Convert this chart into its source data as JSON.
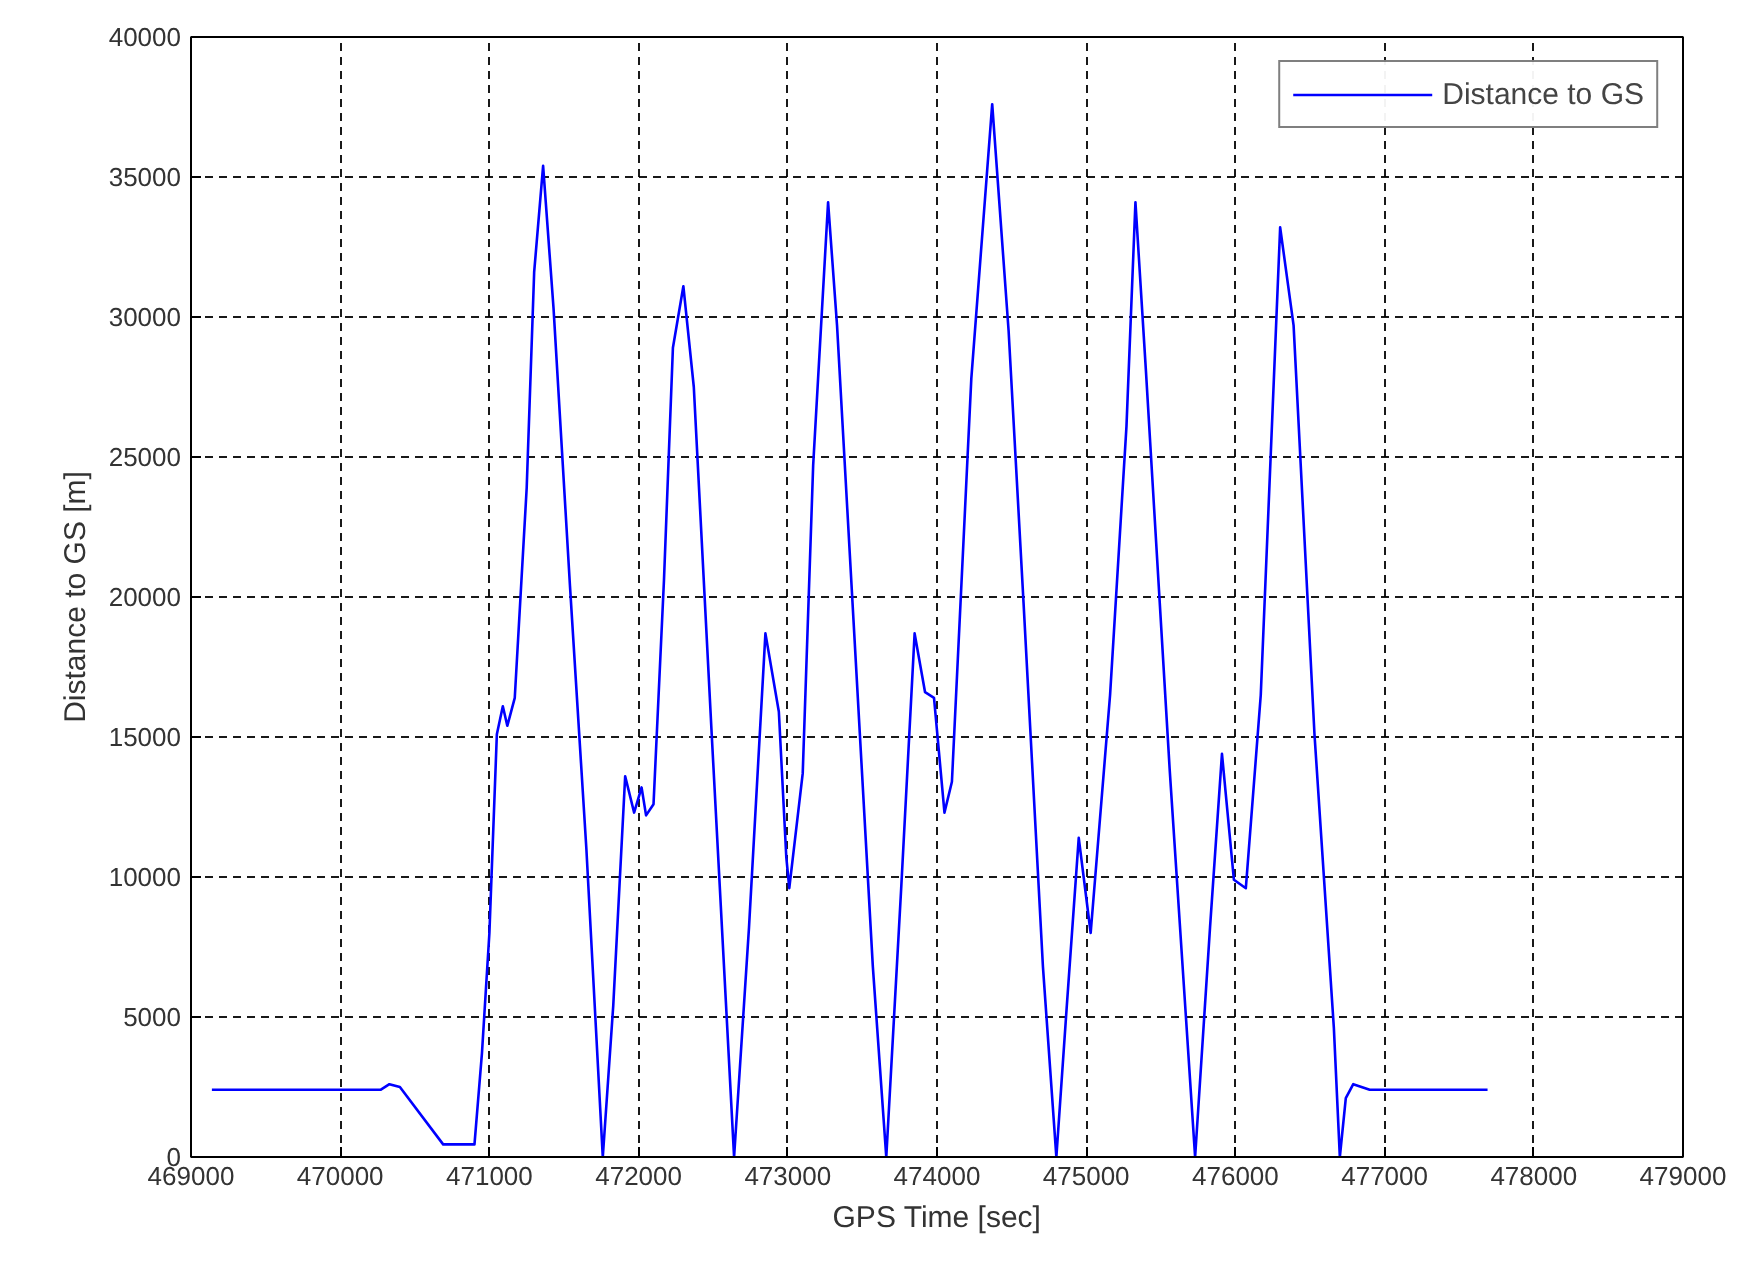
{
  "chart_data": {
    "type": "line",
    "xlabel": "GPS Time [sec]",
    "ylabel": "Distance to GS [m]",
    "xlim": [
      469000,
      479000
    ],
    "xticks": [
      469000,
      470000,
      471000,
      472000,
      473000,
      474000,
      475000,
      476000,
      477000,
      478000,
      479000
    ],
    "ylim": [
      0,
      40000
    ],
    "yticks": [
      0,
      5000,
      10000,
      15000,
      20000,
      25000,
      30000,
      35000,
      40000
    ],
    "grid": true,
    "legend": "top right",
    "line_style": "solid",
    "marker": "none",
    "series": [
      {
        "name": "Distance to GS",
        "color": "#0000ff",
        "x": [
          469140,
          470270,
          470330,
          470400,
          470690,
          470900,
          470950,
          471000,
          471050,
          471090,
          471120,
          471170,
          471250,
          471300,
          471360,
          471430,
          471540,
          471650,
          471760,
          471830,
          471910,
          471970,
          472020,
          472050,
          472100,
          472170,
          472230,
          472300,
          472370,
          472490,
          472640,
          472740,
          472850,
          472940,
          472990,
          473010,
          473100,
          473170,
          473270,
          473330,
          473440,
          473570,
          473660,
          473760,
          473850,
          473920,
          473980,
          474050,
          474100,
          474230,
          474370,
          474480,
          474580,
          474710,
          474800,
          474870,
          474950,
          475030,
          475160,
          475270,
          475330,
          475400,
          475560,
          475730,
          475830,
          475910,
          475990,
          476070,
          476170,
          476300,
          476390,
          476530,
          476660,
          476700,
          476740,
          476790,
          476900,
          477690
        ],
        "values": [
          2400,
          2400,
          2600,
          2500,
          450,
          450,
          3700,
          8000,
          15100,
          16100,
          15400,
          16400,
          23900,
          31600,
          35400,
          30300,
          20400,
          11000,
          0,
          5400,
          13600,
          12300,
          13200,
          12200,
          12600,
          20600,
          28900,
          31100,
          27500,
          15100,
          0,
          8200,
          18700,
          15900,
          10700,
          9600,
          13700,
          24700,
          34100,
          29700,
          19200,
          6800,
          0,
          9600,
          18700,
          16600,
          16400,
          12300,
          13400,
          27800,
          37600,
          29500,
          19800,
          6800,
          0,
          5400,
          11400,
          8000,
          16500,
          26100,
          34100,
          28100,
          13800,
          0,
          8200,
          14400,
          9900,
          9600,
          16500,
          33200,
          29700,
          15100,
          4600,
          0,
          2100,
          2600,
          2400,
          2400
        ]
      }
    ]
  }
}
